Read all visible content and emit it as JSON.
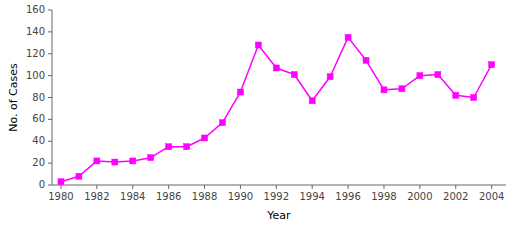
{
  "chart_data": {
    "type": "line",
    "x": [
      1980,
      1981,
      1982,
      1983,
      1984,
      1985,
      1986,
      1987,
      1988,
      1989,
      1990,
      1991,
      1992,
      1993,
      1994,
      1995,
      1996,
      1997,
      1998,
      1999,
      2000,
      2001,
      2002,
      2003,
      2004
    ],
    "values": [
      3,
      8,
      22,
      21,
      22,
      25,
      35,
      35,
      43,
      57,
      85,
      128,
      107,
      101,
      77,
      99,
      135,
      114,
      87,
      88,
      100,
      101,
      82,
      80,
      110
    ],
    "color": "#FF00FF",
    "marker": "square",
    "xlabel": "Year",
    "ylabel": "No. of Cases",
    "xlim": [
      1979.5,
      2004.8
    ],
    "ylim": [
      0,
      160
    ],
    "xticks": [
      1980,
      1982,
      1984,
      1986,
      1988,
      1990,
      1992,
      1994,
      1996,
      1998,
      2000,
      2002,
      2004
    ],
    "yticks": [
      0,
      20,
      40,
      60,
      80,
      100,
      120,
      140,
      160
    ]
  }
}
